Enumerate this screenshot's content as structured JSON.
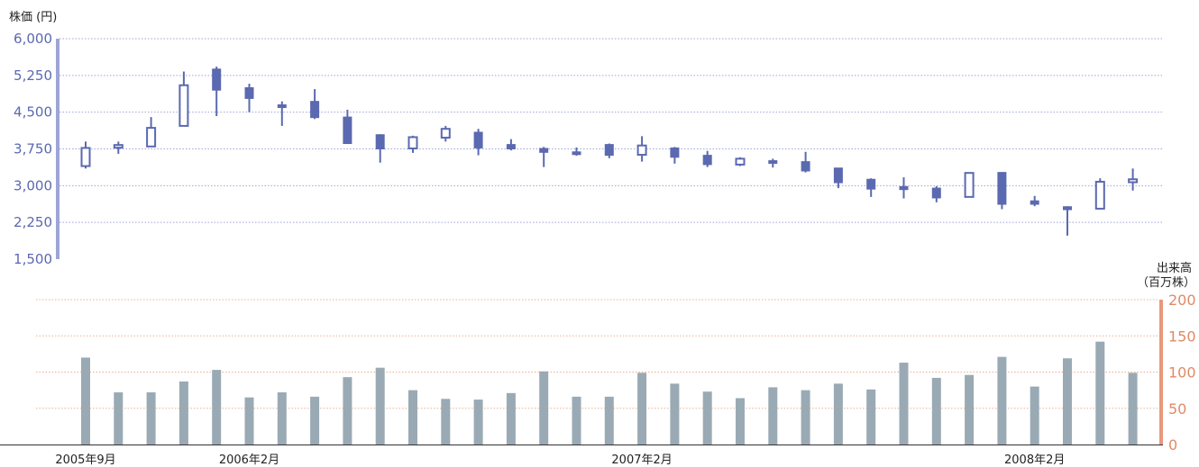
{
  "colors": {
    "candle": "#5b69b0",
    "price_axis": "#9ea5d6",
    "price_grid": "#9ea5d6",
    "price_label": "#5b69b0",
    "volume_bar": "#9aaab4",
    "volume_axis": "#e8987a",
    "volume_grid": "#eab090",
    "volume_label": "#e08a66",
    "text": "#222222",
    "baseline": "#333333"
  },
  "chart_data": [
    {
      "type": "candlestick",
      "title": "",
      "ylabel": "株価 (円)",
      "ylim": [
        1500,
        6000
      ],
      "yticks": [
        "6,000",
        "5,250",
        "4,500",
        "3,750",
        "3,000",
        "2,250",
        "1,500"
      ],
      "ytick_values": [
        6000,
        5250,
        4500,
        3750,
        3000,
        2250,
        1500
      ],
      "grid": true,
      "candles": [
        {
          "open": 3400,
          "high": 3900,
          "low": 3350,
          "close": 3770
        },
        {
          "open": 3800,
          "high": 3900,
          "low": 3650,
          "close": 3830
        },
        {
          "open": 3800,
          "high": 4400,
          "low": 3800,
          "close": 4180
        },
        {
          "open": 4220,
          "high": 5330,
          "low": 4220,
          "close": 5050
        },
        {
          "open": 5380,
          "high": 5430,
          "low": 4420,
          "close": 4950
        },
        {
          "open": 5000,
          "high": 5080,
          "low": 4500,
          "close": 4780
        },
        {
          "open": 4650,
          "high": 4720,
          "low": 4220,
          "close": 4620
        },
        {
          "open": 4720,
          "high": 4970,
          "low": 4360,
          "close": 4390
        },
        {
          "open": 4400,
          "high": 4550,
          "low": 3850,
          "close": 3860
        },
        {
          "open": 4040,
          "high": 4050,
          "low": 3470,
          "close": 3750
        },
        {
          "open": 3760,
          "high": 4020,
          "low": 3670,
          "close": 3990
        },
        {
          "open": 3980,
          "high": 4220,
          "low": 3900,
          "close": 4160
        },
        {
          "open": 4090,
          "high": 4160,
          "low": 3620,
          "close": 3770
        },
        {
          "open": 3840,
          "high": 3950,
          "low": 3720,
          "close": 3750
        },
        {
          "open": 3760,
          "high": 3790,
          "low": 3380,
          "close": 3680
        },
        {
          "open": 3690,
          "high": 3780,
          "low": 3610,
          "close": 3650
        },
        {
          "open": 3840,
          "high": 3860,
          "low": 3560,
          "close": 3620
        },
        {
          "open": 3630,
          "high": 4010,
          "low": 3490,
          "close": 3820
        },
        {
          "open": 3770,
          "high": 3790,
          "low": 3450,
          "close": 3580
        },
        {
          "open": 3620,
          "high": 3710,
          "low": 3380,
          "close": 3430
        },
        {
          "open": 3430,
          "high": 3580,
          "low": 3400,
          "close": 3550
        },
        {
          "open": 3510,
          "high": 3550,
          "low": 3370,
          "close": 3470
        },
        {
          "open": 3490,
          "high": 3690,
          "low": 3270,
          "close": 3300
        },
        {
          "open": 3360,
          "high": 3360,
          "low": 2950,
          "close": 3060
        },
        {
          "open": 3130,
          "high": 3150,
          "low": 2770,
          "close": 2930
        },
        {
          "open": 2980,
          "high": 3170,
          "low": 2740,
          "close": 2920
        },
        {
          "open": 2950,
          "high": 2990,
          "low": 2660,
          "close": 2750
        },
        {
          "open": 2770,
          "high": 3270,
          "low": 2770,
          "close": 3260
        },
        {
          "open": 3270,
          "high": 3270,
          "low": 2520,
          "close": 2620
        },
        {
          "open": 2690,
          "high": 2790,
          "low": 2580,
          "close": 2620
        },
        {
          "open": 2570,
          "high": 2580,
          "low": 1980,
          "close": 2510
        },
        {
          "open": 2530,
          "high": 3150,
          "low": 2530,
          "close": 3080
        },
        {
          "open": 3070,
          "high": 3350,
          "low": 2900,
          "close": 3130
        }
      ]
    },
    {
      "type": "bar",
      "title": "",
      "ylabel_lines": [
        "出来高",
        "（百万株）"
      ],
      "ylim": [
        0,
        200
      ],
      "yticks": [
        "200",
        "150",
        "100",
        "50",
        "0"
      ],
      "ytick_values": [
        200,
        150,
        100,
        50,
        0
      ],
      "grid": true,
      "values": [
        120,
        72,
        72,
        87,
        103,
        65,
        72,
        66,
        93,
        106,
        75,
        63,
        62,
        71,
        101,
        66,
        66,
        99,
        84,
        73,
        64,
        79,
        75,
        84,
        76,
        113,
        92,
        96,
        121,
        80,
        119,
        142,
        99
      ]
    }
  ],
  "x_axis": {
    "labels": [
      {
        "text": "2005年9月",
        "index": 0
      },
      {
        "text": "2006年2月",
        "index": 5
      },
      {
        "text": "2007年2月",
        "index": 17
      },
      {
        "text": "2008年2月",
        "index": 29
      }
    ]
  }
}
